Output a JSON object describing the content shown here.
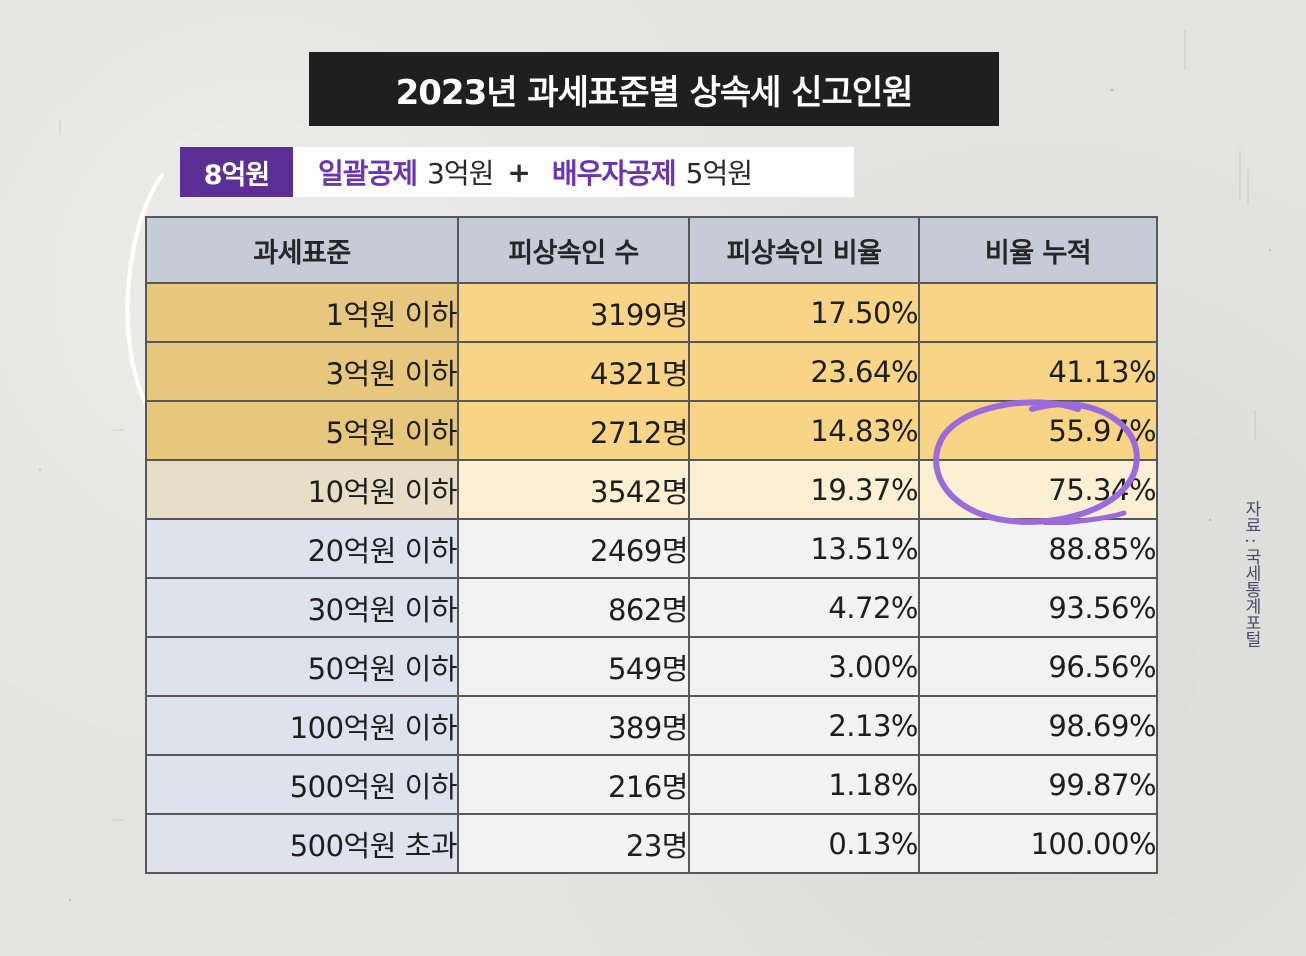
{
  "chart_data": {
    "type": "table",
    "title": "2023년 과세표준별 상속세 신고인원",
    "subtitle": {
      "badge": "8억원",
      "deduction1_label": "일괄공제",
      "deduction1_value": "3억원",
      "plus": "+",
      "deduction2_label": "배우자공제",
      "deduction2_value": "5억원"
    },
    "columns": [
      "과세표준",
      "피상속인 수",
      "피상속인 비율",
      "비율 누적"
    ],
    "rows": [
      {
        "bracket": "1억원 이하",
        "count": "3199명",
        "ratio": "17.50%",
        "cumulative": ""
      },
      {
        "bracket": "3억원 이하",
        "count": "4321명",
        "ratio": "23.64%",
        "cumulative": "41.13%"
      },
      {
        "bracket": "5억원 이하",
        "count": "2712명",
        "ratio": "14.83%",
        "cumulative": "55.97%"
      },
      {
        "bracket": "10억원 이하",
        "count": "3542명",
        "ratio": "19.37%",
        "cumulative": "75.34%"
      },
      {
        "bracket": "20억원 이하",
        "count": "2469명",
        "ratio": "13.51%",
        "cumulative": "88.85%"
      },
      {
        "bracket": "30억원 이하",
        "count": "862명",
        "ratio": "4.72%",
        "cumulative": "93.56%"
      },
      {
        "bracket": "50억원 이하",
        "count": "549명",
        "ratio": "3.00%",
        "cumulative": "96.56%"
      },
      {
        "bracket": "100억원 이하",
        "count": "389명",
        "ratio": "2.13%",
        "cumulative": "98.69%"
      },
      {
        "bracket": "500억원 이하",
        "count": "216명",
        "ratio": "1.18%",
        "cumulative": "99.87%"
      },
      {
        "bracket": "500억원 초과",
        "count": "23명",
        "ratio": "0.13%",
        "cumulative": "100.00%"
      }
    ],
    "highlight": {
      "gold_rows": [
        0,
        1,
        2
      ],
      "cream_rows": [
        3
      ],
      "circled_values": [
        "55.97%",
        "75.34%"
      ]
    },
    "source": "자료 : 국세통계포털"
  },
  "colors": {
    "title_bg": "#1f1f1f",
    "badge_bg": "#5b2f96",
    "accent_text": "#6a34b5",
    "header_bg": "#c5ccd8",
    "gold": "#f8d586",
    "cream": "#fbf0d4",
    "circle": "#9b6bdc"
  }
}
